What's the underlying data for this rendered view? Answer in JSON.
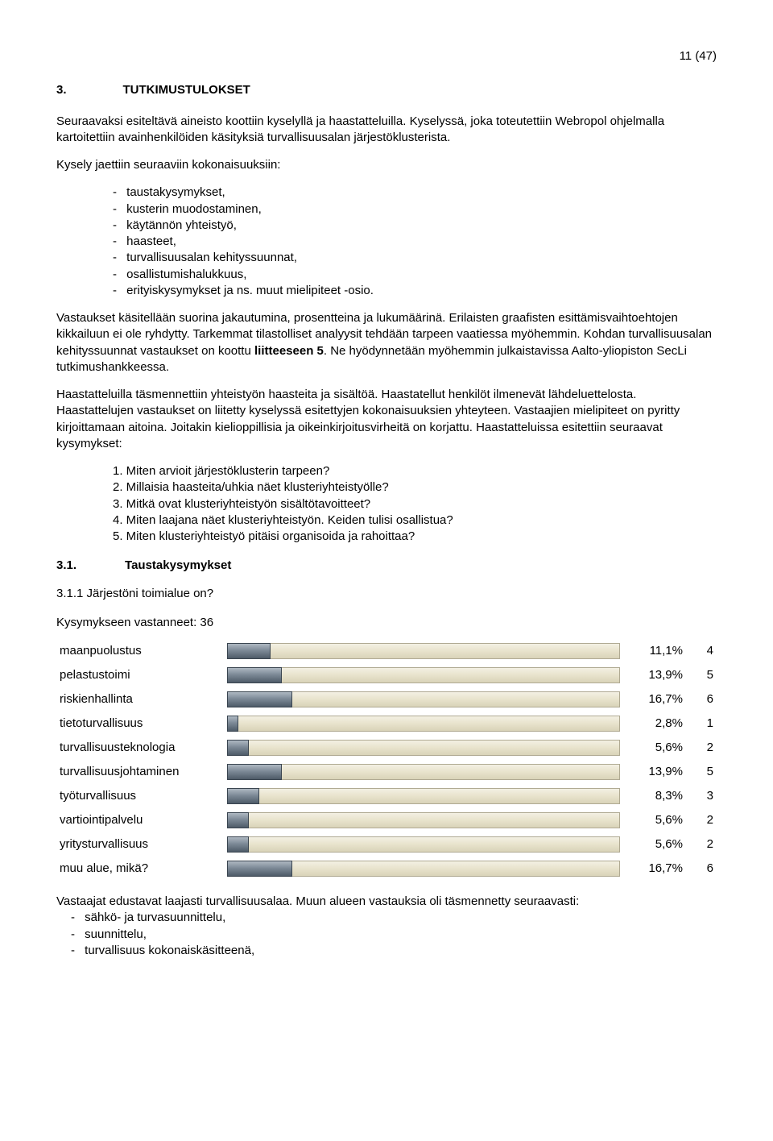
{
  "page_number": "11 (47)",
  "heading": {
    "num": "3.",
    "title": "TUTKIMUSTULOKSET"
  },
  "intro_para_1": "Seuraavaksi esiteltävä aineisto koottiin kyselyllä ja haastatteluilla. Kyselyssä, joka toteutettiin Webropol ohjelmalla kartoitettiin avainhenkilöiden käsityksiä turvallisuusalan järjestöklusterista.",
  "intro_para_2": "Kysely jaettiin seuraaviin kokonaisuuksiin:",
  "bullets_1": [
    "taustakysymykset,",
    "kusterin muodostaminen,",
    "käytännön yhteistyö,",
    "haasteet,",
    "turvallisuusalan kehityssuunnat,",
    "osallistumishalukkuus,",
    "erityiskysymykset ja ns. muut mielipiteet -osio."
  ],
  "para_3_parts": {
    "a": "Vastaukset käsitellään suorina jakautumina, prosentteina ja lukumäärinä. Erilaisten graafisten esittämisvaihtoehtojen kikkailuun ei ole ryhdytty. Tarkemmat tilastolliset analyysit tehdään tarpeen vaatiessa myöhemmin. Kohdan turvallisuusalan kehityssuunnat vastaukset on koottu ",
    "bold": "liitteeseen 5",
    "b": ". Ne hyödynnetään myöhemmin julkaistavissa Aalto-yliopiston SecLi tutkimushankkeessa."
  },
  "para_4": "Haastatteluilla täsmennettiin yhteistyön haasteita ja sisältöä. Haastatellut henkilöt ilmenevät lähdeluettelosta. Haastattelujen vastaukset on liitetty kyselyssä esitettyjen kokonaisuuksien yhteyteen. Vastaajien mielipiteet on pyritty kirjoittamaan aitoina. Joitakin kielioppillisia ja oikeinkirjoitusvirheitä on korjattu. Haastatteluissa esitettiin seuraavat kysymykset:",
  "numbered_list": [
    "1. Miten arvioit järjestöklusterin tarpeen?",
    "2. Millaisia haasteita/uhkia näet klusteriyhteistyölle?",
    "3. Mitkä ovat klusteriyhteistyön sisältötavoitteet?",
    "4. Miten laajana näet klusteriyhteistyön. Keiden tulisi osallistua?",
    "5. Miten klusteriyhteistyö pitäisi organisoida ja rahoittaa?"
  ],
  "subheading": {
    "num": "3.1.",
    "title": "Taustakysymykset"
  },
  "question_line": "3.1.1 Järjestöni toimialue on?",
  "respondent_line": "Kysymykseen vastanneet: 36",
  "chart": {
    "type": "bar",
    "orientation": "horizontal",
    "track_color_top": "#f3f0e3",
    "track_color_bot": "#d9d3b9",
    "fill_color_top": "#aeb8c2",
    "fill_color_bot": "#4e5b68",
    "border_color": "#b0aa93",
    "max_percent": 100,
    "rows": [
      {
        "label": "maanpuolustus",
        "pct": "11,1%",
        "pct_num": 11.1,
        "n": "4"
      },
      {
        "label": "pelastustoimi",
        "pct": "13,9%",
        "pct_num": 13.9,
        "n": "5"
      },
      {
        "label": "riskienhallinta",
        "pct": "16,7%",
        "pct_num": 16.7,
        "n": "6"
      },
      {
        "label": "tietoturvallisuus",
        "pct": "2,8%",
        "pct_num": 2.8,
        "n": "1"
      },
      {
        "label": "turvallisuusteknologia",
        "pct": "5,6%",
        "pct_num": 5.6,
        "n": "2"
      },
      {
        "label": "turvallisuusjohtaminen",
        "pct": "13,9%",
        "pct_num": 13.9,
        "n": "5"
      },
      {
        "label": "työturvallisuus",
        "pct": "8,3%",
        "pct_num": 8.3,
        "n": "3"
      },
      {
        "label": "vartiointipalvelu",
        "pct": "5,6%",
        "pct_num": 5.6,
        "n": "2"
      },
      {
        "label": "yritysturvallisuus",
        "pct": "5,6%",
        "pct_num": 5.6,
        "n": "2"
      },
      {
        "label": "muu alue, mikä?",
        "pct": "16,7%",
        "pct_num": 16.7,
        "n": "6"
      }
    ]
  },
  "footer_para": "Vastaajat edustavat laajasti turvallisuusalaa. Muun alueen vastauksia oli täsmennetty seuraavasti:",
  "footer_bullets": [
    "sähkö- ja turvasuunnittelu,",
    "suunnittelu,",
    "turvallisuus kokonaiskäsitteenä,"
  ]
}
